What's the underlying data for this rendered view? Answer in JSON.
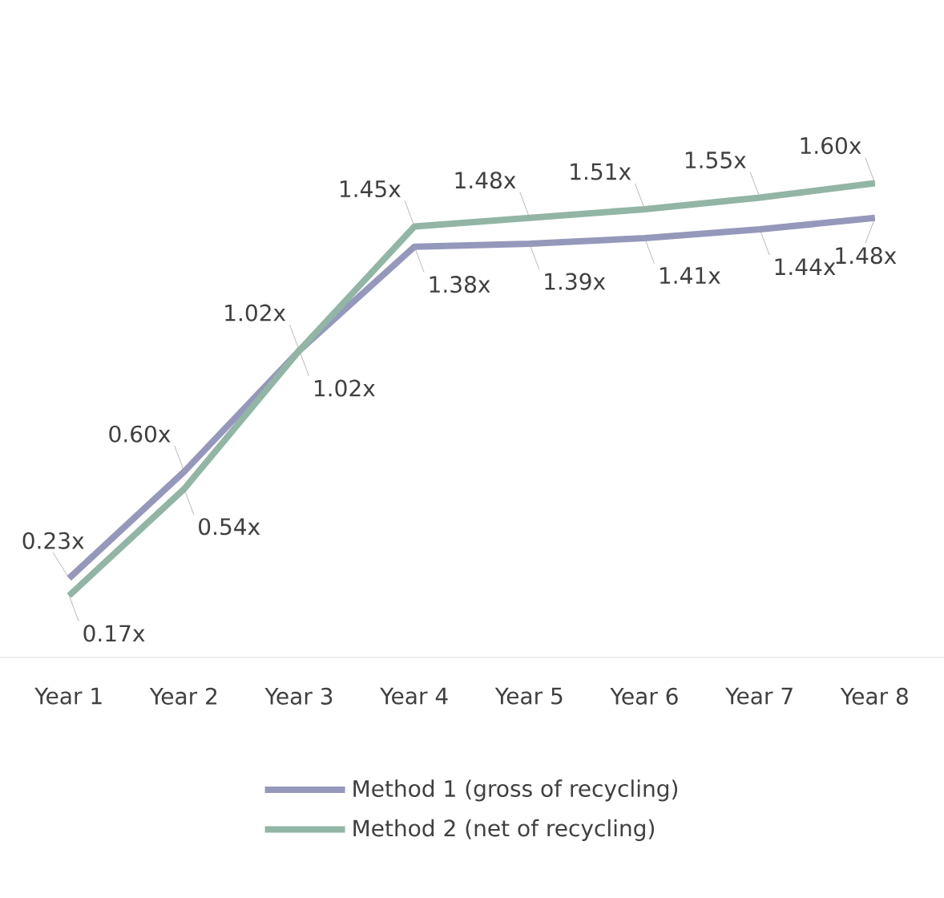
{
  "chart_data": {
    "type": "line",
    "categories": [
      "Year 1",
      "Year 2",
      "Year 3",
      "Year 4",
      "Year 5",
      "Year 6",
      "Year 7",
      "Year 8"
    ],
    "series": [
      {
        "name": "Method 1 (gross of recycling)",
        "color": "#9598bb",
        "values": [
          0.23,
          0.6,
          1.02,
          1.38,
          1.39,
          1.41,
          1.44,
          1.48
        ],
        "value_labels": [
          "0.23x",
          "0.60x",
          "1.02x",
          "1.38x",
          "1.39x",
          "1.41x",
          "1.44x",
          "1.48x"
        ]
      },
      {
        "name": "Method 2 (net of recycling)",
        "color": "#92b5a5",
        "values": [
          0.17,
          0.54,
          1.02,
          1.45,
          1.48,
          1.51,
          1.55,
          1.6
        ],
        "value_labels": [
          "0.17x",
          "0.54x",
          "1.02x",
          "1.45x",
          "1.48x",
          "1.51x",
          "1.55x",
          "1.60x"
        ]
      }
    ],
    "legend": "bottom"
  }
}
